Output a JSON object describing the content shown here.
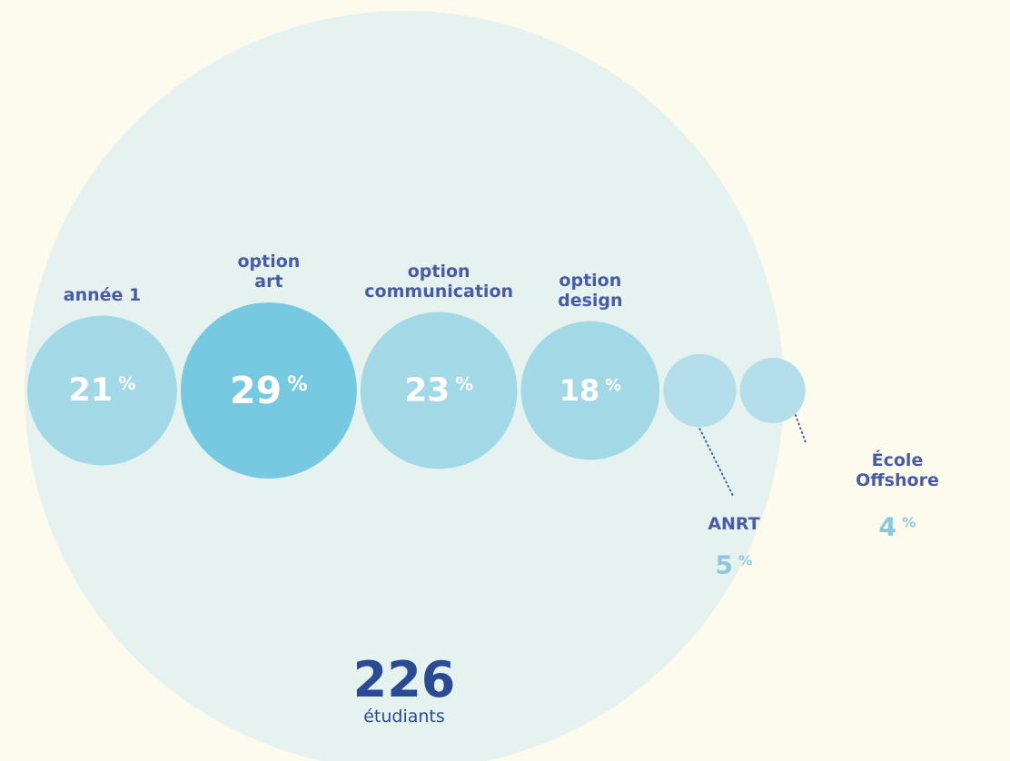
{
  "chart_data": {
    "type": "bubble",
    "categories": [
      "année 1",
      "option\nart",
      "option\ncommunication",
      "option\ndesign",
      "ANRT",
      "École Offshore"
    ],
    "values": [
      21,
      29,
      23,
      18,
      5,
      4
    ],
    "colors": [
      "#a3d8e6",
      "#77c9e2",
      "#a3d8e6",
      "#a3d8e6",
      "#b3deea",
      "#b3deea"
    ],
    "unit": "%",
    "total": 226,
    "total_label": "étudiants"
  }
}
